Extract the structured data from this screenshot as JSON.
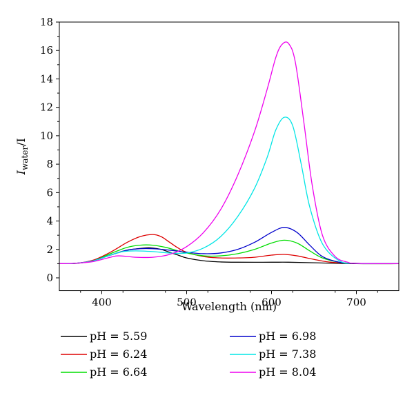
{
  "chart_data": {
    "type": "line",
    "xlabel": "Wavelength (nm)",
    "ylabel": {
      "main": "I",
      "sub": "water",
      "tail": "/I"
    },
    "xlim": [
      350,
      750
    ],
    "ylim": [
      0,
      18
    ],
    "xticks": [
      400,
      500,
      600,
      700
    ],
    "yticks": [
      0,
      2,
      4,
      6,
      8,
      10,
      12,
      14,
      16,
      18
    ],
    "grid": false,
    "legend_position": "bottom",
    "series": [
      {
        "name": "pH = 5.59",
        "color": "#000000",
        "points": [
          [
            350,
            1.0
          ],
          [
            370,
            1.02
          ],
          [
            390,
            1.2
          ],
          [
            410,
            1.6
          ],
          [
            430,
            1.95
          ],
          [
            450,
            2.1
          ],
          [
            460,
            2.1
          ],
          [
            470,
            2.0
          ],
          [
            480,
            1.8
          ],
          [
            490,
            1.6
          ],
          [
            500,
            1.4
          ],
          [
            520,
            1.2
          ],
          [
            540,
            1.12
          ],
          [
            560,
            1.1
          ],
          [
            600,
            1.1
          ],
          [
            620,
            1.1
          ],
          [
            650,
            1.06
          ],
          [
            700,
            1.0
          ],
          [
            750,
            1.0
          ]
        ]
      },
      {
        "name": "pH = 6.24",
        "color": "#dd0000",
        "points": [
          [
            350,
            1.0
          ],
          [
            370,
            1.03
          ],
          [
            390,
            1.25
          ],
          [
            410,
            1.8
          ],
          [
            430,
            2.5
          ],
          [
            445,
            2.9
          ],
          [
            460,
            3.05
          ],
          [
            470,
            2.9
          ],
          [
            480,
            2.5
          ],
          [
            490,
            2.1
          ],
          [
            500,
            1.8
          ],
          [
            520,
            1.5
          ],
          [
            540,
            1.4
          ],
          [
            560,
            1.4
          ],
          [
            580,
            1.45
          ],
          [
            600,
            1.6
          ],
          [
            615,
            1.65
          ],
          [
            630,
            1.55
          ],
          [
            650,
            1.3
          ],
          [
            670,
            1.1
          ],
          [
            700,
            1.02
          ],
          [
            750,
            1.0
          ]
        ]
      },
      {
        "name": "pH = 6.64",
        "color": "#00dd00",
        "points": [
          [
            350,
            1.0
          ],
          [
            370,
            1.03
          ],
          [
            390,
            1.2
          ],
          [
            410,
            1.7
          ],
          [
            430,
            2.15
          ],
          [
            445,
            2.3
          ],
          [
            460,
            2.3
          ],
          [
            475,
            2.15
          ],
          [
            490,
            1.9
          ],
          [
            500,
            1.75
          ],
          [
            520,
            1.55
          ],
          [
            540,
            1.55
          ],
          [
            560,
            1.7
          ],
          [
            580,
            2.0
          ],
          [
            600,
            2.45
          ],
          [
            615,
            2.65
          ],
          [
            630,
            2.45
          ],
          [
            645,
            1.9
          ],
          [
            660,
            1.4
          ],
          [
            680,
            1.1
          ],
          [
            700,
            1.02
          ],
          [
            750,
            1.0
          ]
        ]
      },
      {
        "name": "pH = 6.98",
        "color": "#0000cc",
        "points": [
          [
            350,
            1.0
          ],
          [
            370,
            1.03
          ],
          [
            390,
            1.2
          ],
          [
            410,
            1.6
          ],
          [
            430,
            1.95
          ],
          [
            445,
            2.05
          ],
          [
            460,
            2.05
          ],
          [
            480,
            1.95
          ],
          [
            500,
            1.8
          ],
          [
            520,
            1.7
          ],
          [
            540,
            1.75
          ],
          [
            560,
            2.0
          ],
          [
            580,
            2.5
          ],
          [
            600,
            3.2
          ],
          [
            615,
            3.55
          ],
          [
            630,
            3.2
          ],
          [
            645,
            2.3
          ],
          [
            660,
            1.5
          ],
          [
            680,
            1.1
          ],
          [
            700,
            1.02
          ],
          [
            750,
            1.0
          ]
        ]
      },
      {
        "name": "pH = 7.38",
        "color": "#00e5e5",
        "points": [
          [
            350,
            1.0
          ],
          [
            370,
            1.03
          ],
          [
            390,
            1.2
          ],
          [
            410,
            1.6
          ],
          [
            425,
            1.85
          ],
          [
            440,
            1.9
          ],
          [
            460,
            1.85
          ],
          [
            480,
            1.75
          ],
          [
            500,
            1.75
          ],
          [
            520,
            2.1
          ],
          [
            540,
            2.9
          ],
          [
            560,
            4.3
          ],
          [
            580,
            6.3
          ],
          [
            595,
            8.5
          ],
          [
            605,
            10.4
          ],
          [
            615,
            11.3
          ],
          [
            625,
            10.7
          ],
          [
            635,
            8.0
          ],
          [
            645,
            5.0
          ],
          [
            660,
            2.4
          ],
          [
            680,
            1.2
          ],
          [
            700,
            1.02
          ],
          [
            750,
            1.0
          ]
        ]
      },
      {
        "name": "pH = 8.04",
        "color": "#ee00ee",
        "points": [
          [
            350,
            1.0
          ],
          [
            370,
            1.03
          ],
          [
            390,
            1.15
          ],
          [
            410,
            1.45
          ],
          [
            420,
            1.55
          ],
          [
            440,
            1.45
          ],
          [
            460,
            1.45
          ],
          [
            480,
            1.65
          ],
          [
            500,
            2.2
          ],
          [
            520,
            3.2
          ],
          [
            540,
            4.8
          ],
          [
            560,
            7.2
          ],
          [
            580,
            10.3
          ],
          [
            595,
            13.3
          ],
          [
            605,
            15.5
          ],
          [
            612,
            16.4
          ],
          [
            620,
            16.5
          ],
          [
            628,
            15.2
          ],
          [
            638,
            11.0
          ],
          [
            648,
            6.5
          ],
          [
            660,
            3.0
          ],
          [
            675,
            1.5
          ],
          [
            690,
            1.1
          ],
          [
            700,
            1.02
          ],
          [
            750,
            1.0
          ]
        ]
      }
    ]
  }
}
